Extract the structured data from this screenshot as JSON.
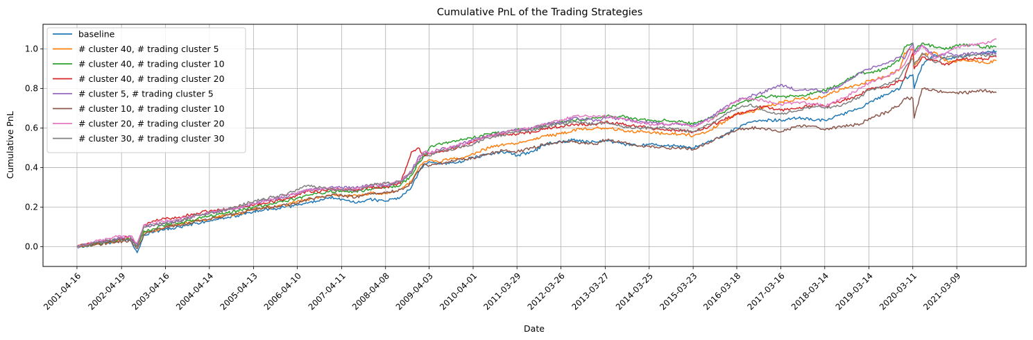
{
  "chart_data": {
    "type": "line",
    "title": "Cumulative PnL of the Trading Strategies",
    "xlabel": "Date",
    "ylabel": "Cumulative PnL",
    "x_tick_labels": [
      "2001-04-16",
      "2002-04-19",
      "2003-04-16",
      "2004-04-14",
      "2005-04-13",
      "2006-04-10",
      "2007-04-11",
      "2008-04-08",
      "2009-04-03",
      "2010-04-01",
      "2011-03-29",
      "2012-03-26",
      "2013-03-27",
      "2014-03-25",
      "2015-03-23",
      "2016-03-18",
      "2017-03-16",
      "2018-03-14",
      "2019-03-14",
      "2020-03-11",
      "2021-03-09"
    ],
    "y_ticks": [
      0.0,
      0.2,
      0.4,
      0.6,
      0.8,
      1.0
    ],
    "y_tick_labels": [
      "0.0",
      "0.2",
      "0.4",
      "0.6",
      "0.8",
      "1.0"
    ],
    "ylim": [
      -0.1,
      1.125
    ],
    "xlim_years": [
      2000.52,
      2022.75
    ],
    "grid": true,
    "legend_position": "upper-left",
    "x_time_points": [
      2001.29,
      2001.7,
      2002.0,
      2002.2,
      2002.5,
      2002.65,
      2002.8,
      2003.0,
      2003.29,
      2003.6,
      2004.0,
      2004.29,
      2004.7,
      2005.0,
      2005.29,
      2005.7,
      2006.0,
      2006.27,
      2006.5,
      2006.8,
      2007.0,
      2007.28,
      2007.6,
      2007.9,
      2008.27,
      2008.6,
      2008.85,
      2009.0,
      2009.15,
      2009.26,
      2009.45,
      2009.7,
      2010.0,
      2010.25,
      2010.6,
      2011.0,
      2011.24,
      2011.6,
      2011.9,
      2012.23,
      2012.5,
      2013.0,
      2013.24,
      2013.6,
      2014.0,
      2014.23,
      2014.6,
      2015.0,
      2015.22,
      2015.6,
      2015.9,
      2016.21,
      2016.5,
      2016.8,
      2017.2,
      2017.6,
      2018.0,
      2018.2,
      2018.6,
      2019.0,
      2019.2,
      2019.6,
      2019.9,
      2020.0,
      2020.19,
      2020.22,
      2020.4,
      2020.7,
      2021.0,
      2021.19,
      2021.5,
      2021.8,
      2022.08
    ],
    "series": [
      {
        "name": "baseline",
        "color": "#1f77b4",
        "values": [
          0.0,
          0.01,
          0.02,
          0.03,
          0.035,
          -0.03,
          0.06,
          0.07,
          0.09,
          0.1,
          0.12,
          0.13,
          0.15,
          0.16,
          0.18,
          0.19,
          0.2,
          0.21,
          0.22,
          0.24,
          0.25,
          0.24,
          0.22,
          0.24,
          0.23,
          0.25,
          0.3,
          0.37,
          0.42,
          0.43,
          0.42,
          0.42,
          0.43,
          0.45,
          0.47,
          0.48,
          0.46,
          0.48,
          0.52,
          0.53,
          0.54,
          0.53,
          0.54,
          0.52,
          0.51,
          0.52,
          0.51,
          0.51,
          0.5,
          0.53,
          0.56,
          0.6,
          0.63,
          0.64,
          0.64,
          0.65,
          0.64,
          0.64,
          0.67,
          0.7,
          0.73,
          0.77,
          0.8,
          0.85,
          0.87,
          0.8,
          0.92,
          0.97,
          0.95,
          0.96,
          0.97,
          0.98,
          0.99
        ]
      },
      {
        "name": "# cluster 40, # trading cluster 5",
        "color": "#ff7f0e",
        "values": [
          0.0,
          0.01,
          0.02,
          0.03,
          0.04,
          0.0,
          0.07,
          0.08,
          0.1,
          0.11,
          0.13,
          0.14,
          0.16,
          0.17,
          0.19,
          0.2,
          0.21,
          0.23,
          0.24,
          0.25,
          0.26,
          0.26,
          0.26,
          0.27,
          0.27,
          0.29,
          0.33,
          0.39,
          0.43,
          0.44,
          0.43,
          0.44,
          0.45,
          0.47,
          0.5,
          0.52,
          0.52,
          0.54,
          0.56,
          0.57,
          0.59,
          0.6,
          0.6,
          0.59,
          0.58,
          0.58,
          0.57,
          0.57,
          0.56,
          0.59,
          0.63,
          0.67,
          0.68,
          0.7,
          0.73,
          0.75,
          0.75,
          0.76,
          0.8,
          0.82,
          0.84,
          0.86,
          0.9,
          0.98,
          1.0,
          0.92,
          0.97,
          0.98,
          0.93,
          0.94,
          0.94,
          0.93,
          0.94
        ]
      },
      {
        "name": "# cluster 40, # trading cluster 10",
        "color": "#2ca02c",
        "values": [
          0.0,
          0.015,
          0.025,
          0.035,
          0.045,
          0.005,
          0.08,
          0.09,
          0.11,
          0.12,
          0.14,
          0.155,
          0.17,
          0.185,
          0.2,
          0.215,
          0.23,
          0.245,
          0.26,
          0.27,
          0.28,
          0.28,
          0.28,
          0.29,
          0.3,
          0.31,
          0.36,
          0.42,
          0.46,
          0.5,
          0.52,
          0.53,
          0.54,
          0.55,
          0.57,
          0.58,
          0.59,
          0.6,
          0.62,
          0.63,
          0.64,
          0.65,
          0.66,
          0.66,
          0.64,
          0.64,
          0.64,
          0.63,
          0.62,
          0.65,
          0.68,
          0.72,
          0.74,
          0.76,
          0.76,
          0.76,
          0.78,
          0.79,
          0.83,
          0.88,
          0.88,
          0.9,
          0.95,
          1.01,
          1.03,
          0.99,
          1.03,
          1.01,
          1.0,
          1.02,
          1.02,
          1.01,
          1.01
        ]
      },
      {
        "name": "# cluster 40, # trading cluster 20",
        "color": "#d62728",
        "values": [
          0.0,
          0.02,
          0.03,
          0.04,
          0.05,
          0.01,
          0.11,
          0.13,
          0.14,
          0.15,
          0.17,
          0.18,
          0.19,
          0.2,
          0.21,
          0.23,
          0.24,
          0.26,
          0.28,
          0.28,
          0.29,
          0.29,
          0.29,
          0.3,
          0.3,
          0.32,
          0.48,
          0.5,
          0.46,
          0.47,
          0.48,
          0.49,
          0.51,
          0.53,
          0.56,
          0.57,
          0.57,
          0.58,
          0.6,
          0.61,
          0.62,
          0.62,
          0.63,
          0.62,
          0.61,
          0.6,
          0.59,
          0.59,
          0.58,
          0.61,
          0.64,
          0.67,
          0.69,
          0.71,
          0.69,
          0.7,
          0.72,
          0.71,
          0.74,
          0.77,
          0.8,
          0.81,
          0.84,
          0.85,
          0.98,
          0.9,
          0.96,
          0.94,
          0.92,
          0.95,
          0.95,
          0.95,
          0.96
        ]
      },
      {
        "name": "# cluster 5, # trading cluster 5",
        "color": "#9467bd",
        "values": [
          0.0,
          0.02,
          0.03,
          0.04,
          0.05,
          0.01,
          0.1,
          0.11,
          0.12,
          0.13,
          0.16,
          0.17,
          0.19,
          0.2,
          0.22,
          0.24,
          0.25,
          0.27,
          0.29,
          0.29,
          0.3,
          0.3,
          0.3,
          0.31,
          0.31,
          0.33,
          0.38,
          0.45,
          0.48,
          0.47,
          0.49,
          0.5,
          0.52,
          0.54,
          0.56,
          0.58,
          0.59,
          0.6,
          0.62,
          0.63,
          0.65,
          0.64,
          0.65,
          0.65,
          0.63,
          0.63,
          0.62,
          0.62,
          0.61,
          0.65,
          0.7,
          0.74,
          0.76,
          0.78,
          0.82,
          0.79,
          0.8,
          0.78,
          0.82,
          0.88,
          0.9,
          0.93,
          0.96,
          0.95,
          1.03,
          0.98,
          1.02,
          0.96,
          0.98,
          0.97,
          0.98,
          0.98,
          0.98
        ]
      },
      {
        "name": "# cluster 10, # trading cluster 10",
        "color": "#8c564b",
        "values": [
          0.0,
          0.01,
          0.02,
          0.025,
          0.03,
          -0.01,
          0.06,
          0.08,
          0.1,
          0.11,
          0.13,
          0.14,
          0.16,
          0.17,
          0.19,
          0.2,
          0.21,
          0.22,
          0.24,
          0.25,
          0.26,
          0.26,
          0.25,
          0.27,
          0.27,
          0.29,
          0.32,
          0.38,
          0.42,
          0.41,
          0.42,
          0.43,
          0.44,
          0.45,
          0.47,
          0.49,
          0.48,
          0.5,
          0.52,
          0.53,
          0.53,
          0.52,
          0.54,
          0.53,
          0.51,
          0.51,
          0.5,
          0.5,
          0.49,
          0.53,
          0.56,
          0.59,
          0.6,
          0.6,
          0.58,
          0.61,
          0.61,
          0.59,
          0.61,
          0.62,
          0.65,
          0.68,
          0.72,
          0.75,
          0.75,
          0.65,
          0.8,
          0.79,
          0.78,
          0.78,
          0.78,
          0.79,
          0.78
        ]
      },
      {
        "name": "# cluster 20, # trading cluster 20",
        "color": "#e377c2",
        "values": [
          0.0,
          0.03,
          0.04,
          0.05,
          0.055,
          0.02,
          0.11,
          0.12,
          0.13,
          0.14,
          0.16,
          0.17,
          0.19,
          0.2,
          0.22,
          0.24,
          0.26,
          0.27,
          0.29,
          0.29,
          0.29,
          0.29,
          0.29,
          0.31,
          0.32,
          0.33,
          0.38,
          0.44,
          0.48,
          0.47,
          0.49,
          0.5,
          0.52,
          0.53,
          0.56,
          0.58,
          0.59,
          0.6,
          0.62,
          0.64,
          0.66,
          0.66,
          0.66,
          0.65,
          0.63,
          0.62,
          0.62,
          0.62,
          0.61,
          0.64,
          0.69,
          0.74,
          0.75,
          0.74,
          0.72,
          0.73,
          0.72,
          0.71,
          0.75,
          0.8,
          0.83,
          0.86,
          0.9,
          0.92,
          1.01,
          0.97,
          1.02,
          0.95,
          0.99,
          1.01,
          1.02,
          1.03,
          1.05
        ]
      },
      {
        "name": "# cluster 30, # trading cluster 30",
        "color": "#7f7f7f",
        "values": [
          0.0,
          0.02,
          0.03,
          0.035,
          0.04,
          0.0,
          0.1,
          0.11,
          0.12,
          0.13,
          0.16,
          0.17,
          0.19,
          0.21,
          0.23,
          0.25,
          0.26,
          0.29,
          0.31,
          0.3,
          0.29,
          0.29,
          0.28,
          0.31,
          0.32,
          0.33,
          0.37,
          0.43,
          0.47,
          0.46,
          0.48,
          0.49,
          0.51,
          0.52,
          0.55,
          0.57,
          0.58,
          0.59,
          0.61,
          0.62,
          0.63,
          0.62,
          0.63,
          0.61,
          0.6,
          0.6,
          0.6,
          0.59,
          0.58,
          0.62,
          0.66,
          0.7,
          0.72,
          0.69,
          0.67,
          0.69,
          0.71,
          0.7,
          0.72,
          0.76,
          0.79,
          0.82,
          0.86,
          0.9,
          0.95,
          0.92,
          0.98,
          0.93,
          0.96,
          0.96,
          0.97,
          0.97,
          0.97
        ]
      }
    ]
  }
}
